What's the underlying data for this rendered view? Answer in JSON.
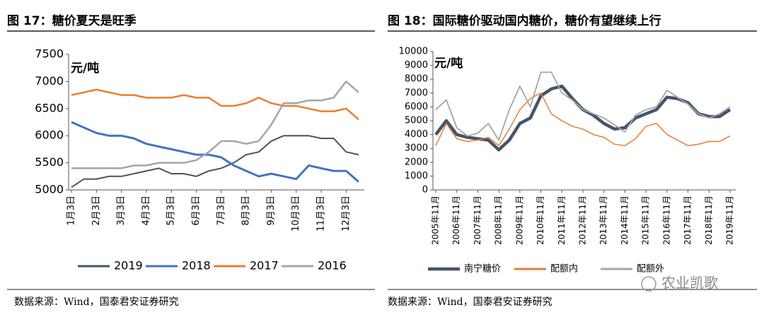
{
  "chart_data": [
    {
      "type": "line",
      "title": "图 17：糖价夏天是旺季",
      "y_label": "元/吨",
      "source": "数据来源：Wind，国泰君安证券研究",
      "categories": [
        "1月3日",
        null,
        "2月3日",
        null,
        "3月3日",
        null,
        "4月3日",
        null,
        "5月3日",
        null,
        "6月3日",
        null,
        "7月3日",
        null,
        "8月3日",
        null,
        "9月3日",
        null,
        "10月3日",
        null,
        "11月3日",
        null,
        "12月3日",
        null
      ],
      "ylim": [
        5000,
        7500
      ],
      "yticks": [
        5000,
        5500,
        6000,
        6500,
        7000,
        7500
      ],
      "series": [
        {
          "name": "2019",
          "color": "#44546a",
          "values": [
            5050,
            5200,
            5200,
            5250,
            5250,
            5300,
            5350,
            5400,
            5300,
            5300,
            5250,
            5350,
            5400,
            5500,
            5650,
            5700,
            5900,
            6000,
            6000,
            6000,
            5950,
            5950,
            5700,
            5650
          ]
        },
        {
          "name": "2018",
          "color": "#4472c4",
          "values": [
            6250,
            6150,
            6050,
            6000,
            6000,
            5950,
            5850,
            5800,
            5750,
            5700,
            5650,
            5650,
            5600,
            5450,
            5350,
            5250,
            5300,
            5250,
            5200,
            5450,
            5400,
            5350,
            5350,
            5150
          ]
        },
        {
          "name": "2017",
          "color": "#ed7d31",
          "values": [
            6750,
            6800,
            6850,
            6800,
            6750,
            6750,
            6700,
            6700,
            6700,
            6750,
            6700,
            6700,
            6550,
            6550,
            6600,
            6700,
            6600,
            6550,
            6550,
            6500,
            6450,
            6450,
            6500,
            6300
          ]
        },
        {
          "name": "2016",
          "color": "#a5a5a5",
          "values": [
            5400,
            5400,
            5400,
            5400,
            5400,
            5450,
            5450,
            5500,
            5500,
            5500,
            5550,
            5700,
            5900,
            5900,
            5850,
            5900,
            6200,
            6600,
            6600,
            6650,
            6650,
            6700,
            7000,
            6800
          ]
        }
      ]
    },
    {
      "type": "line",
      "title": "图 18：国际糖价驱动国内糖价，糖价有望继续上行",
      "y_label": "元/吨",
      "source": "数据来源：Wind，国泰君安证券研究",
      "categories": [
        "2005年11月",
        null,
        "2006年11月",
        null,
        "2007年11月",
        null,
        "2008年11月",
        null,
        "2009年11月",
        null,
        "2010年11月",
        null,
        "2011年11月",
        null,
        "2012年11月",
        null,
        "2013年11月",
        null,
        "2014年11月",
        null,
        "2015年11月",
        null,
        "2016年11月",
        null,
        "2017年11月",
        null,
        "2018年11月",
        null,
        "2019年11月"
      ],
      "ylim": [
        0,
        10000
      ],
      "yticks": [
        0,
        1000,
        2000,
        3000,
        4000,
        5000,
        6000,
        7000,
        8000,
        9000,
        10000
      ],
      "series": [
        {
          "name": "南宁糖价",
          "color": "#44546a",
          "values": [
            4000,
            5000,
            4000,
            3800,
            3700,
            3600,
            2900,
            3600,
            4800,
            5200,
            6800,
            7300,
            7500,
            6600,
            5800,
            5400,
            4800,
            4400,
            4500,
            5200,
            5500,
            5800,
            6700,
            6600,
            6300,
            5500,
            5300,
            5300,
            5800
          ]
        },
        {
          "name": "配额内",
          "color": "#ed7d31",
          "values": [
            3200,
            4800,
            3700,
            3500,
            3600,
            3800,
            3200,
            4400,
            5800,
            6600,
            7000,
            5500,
            5000,
            4600,
            4400,
            4000,
            3800,
            3300,
            3200,
            3700,
            4600,
            4800,
            4000,
            3600,
            3200,
            3300,
            3500,
            3500,
            3900
          ]
        },
        {
          "name": "配额外",
          "color": "#a5a5a5",
          "values": [
            5800,
            6500,
            4500,
            3900,
            4100,
            4800,
            3600,
            5800,
            7500,
            6000,
            8500,
            8500,
            7000,
            6500,
            5800,
            5500,
            5200,
            4700,
            4200,
            5400,
            5800,
            6000,
            7200,
            6700,
            6200,
            5500,
            5200,
            5500,
            6000
          ]
        }
      ]
    }
  ],
  "watermark": "农业凯歌"
}
